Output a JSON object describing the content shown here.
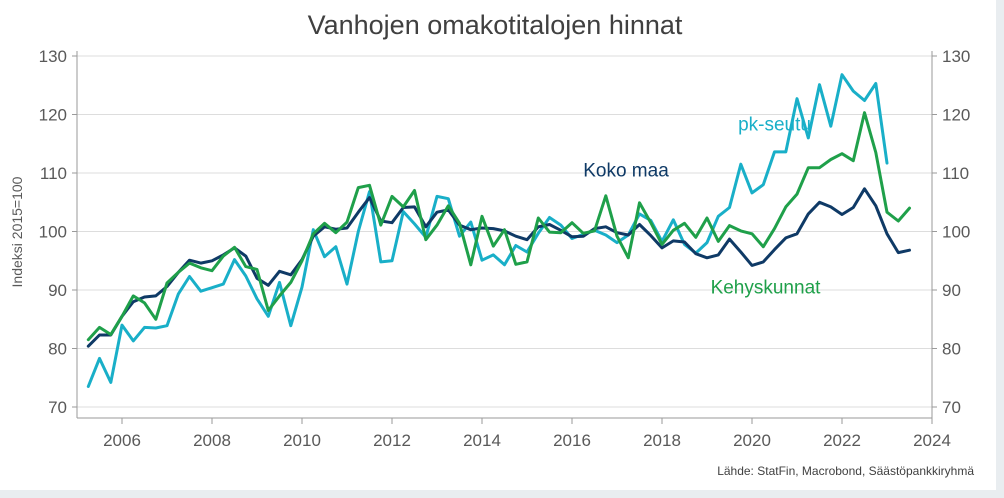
{
  "chart_data": {
    "type": "line",
    "title": "Vanhojen omakotitalojen hinnat",
    "ylabel": "Indeksi 2015=100",
    "source": "Lähde: StatFin, Macrobond, Säästöpankkiryhmä",
    "ylim": [
      70,
      130
    ],
    "xlim": [
      2005,
      2024
    ],
    "y_ticks": [
      "70",
      "80",
      "90",
      "100",
      "110",
      "120",
      "130"
    ],
    "x_ticks": [
      "2006",
      "2008",
      "2010",
      "2012",
      "2014",
      "2016",
      "2018",
      "2020",
      "2022",
      "2024"
    ],
    "grid": "horizontal",
    "x_start": 2005.25,
    "x_step": 0.25,
    "series": [
      {
        "name": "pk-seutu",
        "color": "#19afc8",
        "values": [
          73.5,
          78.3,
          74.2,
          84.0,
          81.3,
          83.6,
          83.5,
          83.9,
          89.3,
          92.3,
          89.8,
          90.4,
          91.0,
          95.2,
          92.4,
          88.5,
          85.5,
          91.3,
          83.9,
          90.5,
          100.3,
          95.7,
          97.4,
          91.0,
          100.0,
          106.8,
          94.8,
          95.0,
          103.4,
          101.3,
          99.0,
          106.0,
          105.6,
          99.2,
          101.6,
          95.1,
          96.0,
          94.3,
          97.6,
          96.5,
          99.7,
          102.4,
          101.1,
          98.8,
          99.5,
          100.2,
          99.4,
          98.1,
          99.4,
          103.0,
          101.9,
          98.3,
          102.0,
          97.8,
          96.3,
          98.1,
          102.6,
          104.1,
          111.5,
          106.6,
          108.0,
          113.6,
          113.6,
          122.7,
          116.0,
          125.1,
          118.0,
          126.8,
          124.0,
          122.4,
          125.3,
          111.7
        ]
      },
      {
        "name": "Koko maa",
        "color": "#0f3a66",
        "values": [
          80.4,
          82.3,
          82.3,
          85.5,
          88.0,
          88.8,
          89.0,
          90.6,
          93.0,
          95.1,
          94.6,
          95.0,
          96.0,
          97.2,
          95.8,
          92.0,
          90.8,
          93.2,
          92.6,
          95.2,
          99.2,
          100.8,
          100.4,
          100.6,
          103.3,
          105.8,
          101.8,
          101.5,
          104.1,
          104.2,
          100.8,
          103.3,
          103.7,
          101.1,
          100.3,
          100.6,
          100.5,
          100.1,
          99.2,
          98.6,
          100.8,
          101.2,
          100.2,
          99.1,
          99.2,
          100.5,
          100.8,
          99.8,
          99.4,
          101.2,
          99.3,
          97.2,
          98.4,
          98.2,
          96.2,
          95.5,
          96.0,
          98.7,
          96.5,
          94.2,
          94.8,
          96.9,
          98.9,
          99.6,
          103.0,
          105.0,
          104.2,
          102.9,
          104.1,
          107.3,
          104.4,
          99.6,
          96.4,
          96.8
        ]
      },
      {
        "name": "Kehyskunnat",
        "color": "#1fa04a",
        "values": [
          81.5,
          83.6,
          82.4,
          85.5,
          89.0,
          87.8,
          85.0,
          91.2,
          93.0,
          94.6,
          93.8,
          93.3,
          95.8,
          97.3,
          94.0,
          93.5,
          86.5,
          89.0,
          91.3,
          95.0,
          99.6,
          101.4,
          99.8,
          101.6,
          107.5,
          107.9,
          101.1,
          106.0,
          104.2,
          107.0,
          98.6,
          101.1,
          104.4,
          101.4,
          94.3,
          102.6,
          97.5,
          100.3,
          94.4,
          94.8,
          102.3,
          99.9,
          99.8,
          101.5,
          99.7,
          100.1,
          106.1,
          99.2,
          95.5,
          104.9,
          101.5,
          97.8,
          100.2,
          101.4,
          99.0,
          102.3,
          98.3,
          101.0,
          100.1,
          99.6,
          97.4,
          100.5,
          104.2,
          106.4,
          110.9,
          110.9,
          112.3,
          113.3,
          112.1,
          120.3,
          113.5,
          103.3,
          101.8,
          104.0
        ]
      }
    ],
    "annotations": [
      {
        "text": "pk-seutu",
        "x": 2020.5,
        "y": 117.3,
        "color": "#19afc8"
      },
      {
        "text": "Koko maa",
        "x": 2017.2,
        "y": 109.4,
        "color": "#0f3a66"
      },
      {
        "text": "Kehyskunnat",
        "x": 2020.3,
        "y": 89.4,
        "color": "#1fa04a"
      }
    ]
  }
}
